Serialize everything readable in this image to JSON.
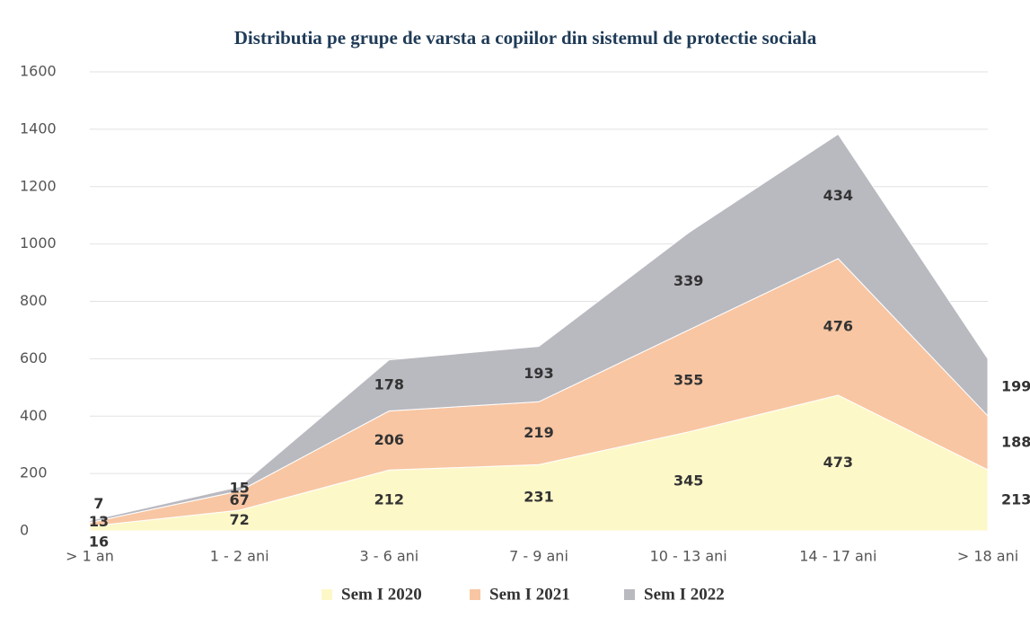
{
  "chart_data": {
    "type": "stacked_area",
    "title": "Distributia pe grupe de varsta a copiilor din sistemul de protectie sociala",
    "categories": [
      "> 1 an",
      "1 - 2 ani",
      "3 - 6 ani",
      "7 - 9 ani",
      "10 - 13 ani",
      "14 - 17 ani",
      "> 18 ani"
    ],
    "series": [
      {
        "name": "Sem I 2020",
        "color": "#fdf8c8",
        "values": [
          16,
          72,
          212,
          231,
          345,
          473,
          213
        ]
      },
      {
        "name": "Sem I 2021",
        "color": "#f8c6a3",
        "values": [
          13,
          67,
          206,
          219,
          355,
          476,
          188
        ]
      },
      {
        "name": "Sem I 2022",
        "color": "#b9b9c0",
        "values": [
          7,
          15,
          178,
          193,
          339,
          434,
          199
        ]
      }
    ],
    "ylim": [
      0,
      1600
    ],
    "yticks": [
      0,
      200,
      400,
      600,
      800,
      1000,
      1200,
      1400,
      1600
    ],
    "grid": true
  }
}
